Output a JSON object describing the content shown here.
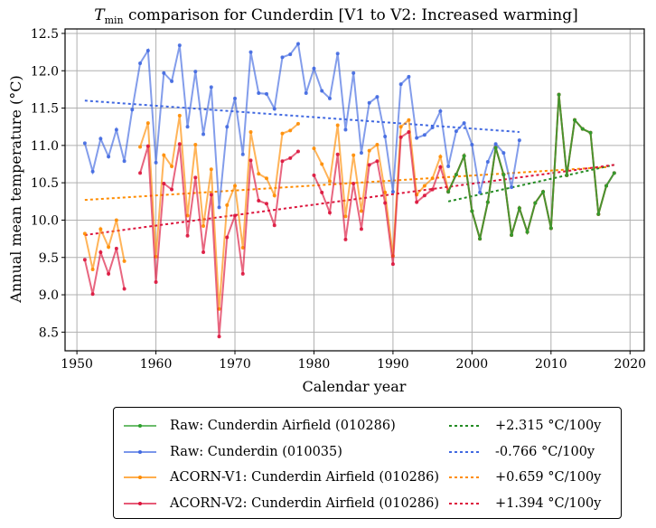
{
  "chart_data": {
    "type": "line",
    "title_prefix": "T",
    "title_subscript": "min",
    "title_rest": " comparison for Cunderdin  [V1 to V2: Increased warming]",
    "xlabel": "Calendar year",
    "ylabel": "Annual mean temperature (°C)",
    "xlim": [
      1948.5,
      2021.8
    ],
    "ylim": [
      8.25,
      12.56
    ],
    "xticks": [
      1950,
      1960,
      1970,
      1980,
      1990,
      2000,
      2010,
      2020
    ],
    "yticks": [
      8.5,
      9.0,
      9.5,
      10.0,
      10.5,
      11.0,
      11.5,
      12.0,
      12.5
    ],
    "ytick_labels": [
      "8.5",
      "9.0",
      "9.5",
      "10.0",
      "10.5",
      "11.0",
      "11.5",
      "12.0",
      "12.5"
    ],
    "grid": true,
    "legend_position": "below",
    "series": [
      {
        "name": "Raw: Cunderdin Airfield (010286)",
        "color": "#2ca02c",
        "x": [
          1997,
          1998,
          1999,
          2000,
          2001,
          2002,
          2003,
          2004,
          2005,
          2006,
          2007,
          2008,
          2009,
          2010,
          2011,
          2012,
          2013,
          2014,
          2015,
          2016,
          2017,
          2018
        ],
        "values": [
          10.38,
          10.61,
          10.86,
          10.12,
          9.75,
          10.24,
          10.97,
          10.61,
          9.8,
          10.16,
          9.84,
          10.23,
          10.38,
          9.89,
          11.68,
          10.6,
          11.34,
          11.22,
          11.17,
          10.08,
          10.46,
          10.63
        ]
      },
      {
        "name": "Raw: Cunderdin (010035)",
        "color": "#4169e1",
        "x": [
          1951,
          1952,
          1953,
          1954,
          1955,
          1956,
          1957,
          1958,
          1959,
          1960,
          1961,
          1962,
          1963,
          1964,
          1965,
          1966,
          1967,
          1968,
          1969,
          1970,
          1971,
          1972,
          1973,
          1974,
          1975,
          1976,
          1977,
          1978,
          1979,
          1980,
          1981,
          1982,
          1983,
          1984,
          1985,
          1986,
          1987,
          1988,
          1989,
          1990,
          1991,
          1992,
          1993,
          1994,
          1995,
          1996,
          1997,
          1998,
          1999,
          2000,
          2001,
          2002,
          2003,
          2004,
          2005,
          2006
        ],
        "values": [
          11.03,
          10.65,
          11.09,
          10.85,
          11.21,
          10.79,
          11.48,
          12.1,
          12.27,
          10.77,
          11.97,
          11.86,
          12.34,
          11.25,
          11.99,
          11.15,
          11.78,
          10.17,
          11.25,
          11.63,
          10.88,
          12.25,
          11.7,
          11.69,
          11.49,
          12.18,
          12.22,
          12.36,
          11.7,
          12.03,
          11.73,
          11.63,
          12.23,
          11.21,
          11.97,
          10.9,
          11.57,
          11.65,
          11.12,
          10.38,
          11.82,
          11.92,
          11.1,
          11.14,
          11.24,
          11.46,
          10.72,
          11.19,
          11.3,
          11.01,
          10.37,
          10.78,
          11.02,
          10.9,
          10.44,
          11.07
        ]
      },
      {
        "name": "ACORN-V1: Cunderdin Airfield (010286)",
        "color": "#ff8c00",
        "x": [
          1951,
          1952,
          1953,
          1954,
          1955,
          1956,
          null,
          1958,
          1959,
          1960,
          1961,
          1962,
          1963,
          1964,
          1965,
          1966,
          1967,
          1968,
          1969,
          1970,
          1971,
          1972,
          1973,
          1974,
          1975,
          1976,
          1977,
          1978,
          null,
          1980,
          1981,
          1982,
          1983,
          1984,
          1985,
          1986,
          1987,
          1988,
          1989,
          1990,
          1991,
          1992,
          1993,
          1994,
          1995,
          1996,
          1997,
          1998,
          1999,
          2000,
          2001,
          2002,
          2003,
          2004,
          2005,
          2006,
          2007,
          2008,
          2009,
          2010,
          2011,
          2012,
          2013,
          2014,
          2015,
          2016,
          2017
        ],
        "values": [
          9.82,
          9.34,
          9.88,
          9.64,
          10.0,
          9.45,
          null,
          10.98,
          11.3,
          9.51,
          10.87,
          10.72,
          11.4,
          10.06,
          11.01,
          9.92,
          10.68,
          8.81,
          10.2,
          10.46,
          9.63,
          11.18,
          10.62,
          10.56,
          10.33,
          11.16,
          11.2,
          11.29,
          null,
          10.96,
          10.75,
          10.52,
          11.27,
          10.05,
          10.87,
          10.12,
          10.93,
          11.01,
          10.37,
          9.52,
          11.25,
          11.34,
          10.34,
          10.46,
          10.56,
          10.85,
          10.39,
          10.61,
          10.86,
          10.12,
          9.75,
          10.24,
          10.97,
          10.61,
          9.8,
          10.16,
          9.84,
          10.23,
          10.38,
          9.89,
          11.68,
          10.6,
          11.34,
          11.22,
          11.17,
          10.08,
          10.46
        ]
      },
      {
        "name": "ACORN-V2: Cunderdin Airfield (010286)",
        "color": "#dc143c",
        "x": [
          1951,
          1952,
          1953,
          1954,
          1955,
          1956,
          null,
          1958,
          1959,
          1960,
          1961,
          1962,
          1963,
          1964,
          1965,
          1966,
          1967,
          1968,
          1969,
          1970,
          1971,
          1972,
          1973,
          1974,
          1975,
          1976,
          1977,
          1978,
          null,
          1980,
          1981,
          1982,
          1983,
          1984,
          1985,
          1986,
          1987,
          1988,
          1989,
          1990,
          1991,
          1992,
          1993,
          1994,
          1995,
          1996,
          1997,
          1998,
          1999,
          2000,
          2001,
          2002,
          2003,
          2004,
          2005,
          2006,
          2007,
          2008,
          2009,
          2010,
          2011,
          2012,
          2013,
          2014,
          2015,
          2016,
          2017,
          2018
        ],
        "values": [
          9.47,
          9.01,
          9.57,
          9.28,
          9.62,
          9.08,
          null,
          10.63,
          10.99,
          9.17,
          10.49,
          10.41,
          11.02,
          9.79,
          10.57,
          9.57,
          10.34,
          8.44,
          9.77,
          10.06,
          9.28,
          10.8,
          10.26,
          10.22,
          9.93,
          10.79,
          10.83,
          10.92,
          null,
          10.6,
          10.37,
          10.1,
          10.88,
          9.74,
          10.49,
          9.88,
          10.74,
          10.79,
          10.23,
          9.41,
          11.11,
          11.18,
          10.24,
          10.33,
          10.41,
          10.71,
          10.38,
          10.61,
          10.86,
          10.12,
          9.75,
          10.24,
          10.97,
          10.61,
          9.8,
          10.16,
          9.84,
          10.23,
          10.38,
          9.89,
          11.68,
          10.6,
          11.34,
          11.22,
          11.17,
          10.08,
          10.46,
          10.63
        ]
      }
    ],
    "trends": [
      {
        "label": "+2.315 °C/100y",
        "color": "#228b22",
        "x": [
          1997,
          2018
        ],
        "values": [
          10.25,
          10.74
        ]
      },
      {
        "label": "-0.766 °C/100y",
        "color": "#4169e1",
        "x": [
          1951,
          2006
        ],
        "values": [
          11.6,
          11.18
        ]
      },
      {
        "label": "+0.659 °C/100y",
        "color": "#ff8c00",
        "x": [
          1951,
          2017
        ],
        "values": [
          10.27,
          10.71
        ]
      },
      {
        "label": "+1.394 °C/100y",
        "color": "#dc143c",
        "x": [
          1951,
          2018
        ],
        "values": [
          9.8,
          10.74
        ]
      }
    ]
  }
}
